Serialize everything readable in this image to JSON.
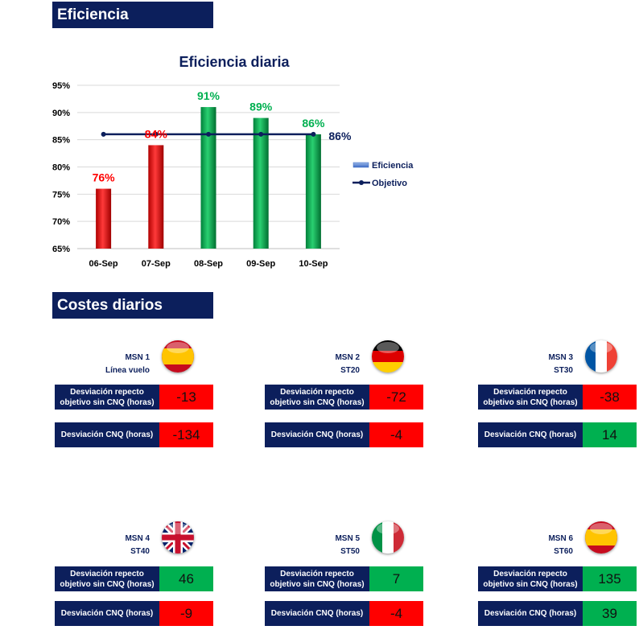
{
  "sections": {
    "efficiency_title": "Eficiencia",
    "costs_title": "Costes diarios"
  },
  "chart_data": {
    "type": "bar",
    "title": "Eficiencia diaria",
    "categories": [
      "06-Sep",
      "07-Sep",
      "08-Sep",
      "09-Sep",
      "10-Sep"
    ],
    "series": [
      {
        "name": "Eficiencia",
        "type": "bar",
        "values": [
          76,
          84,
          91,
          89,
          86
        ],
        "bar_colors": [
          "#ff0000",
          "#ff0000",
          "#00b050",
          "#00b050",
          "#00b050"
        ]
      },
      {
        "name": "Objetivo",
        "type": "line",
        "values": [
          86,
          86,
          86,
          86,
          86
        ],
        "color": "#0c1f5c"
      }
    ],
    "data_labels": [
      "76%",
      "84%",
      "91%",
      "89%",
      "86%"
    ],
    "objective_label": "86%",
    "y_ticks": [
      "95%",
      "90%",
      "85%",
      "80%",
      "75%",
      "70%",
      "65%"
    ],
    "ylim": [
      65,
      95
    ],
    "grid": true,
    "legend_position": "right"
  },
  "cards": [
    {
      "msn": "MSN 1",
      "station": "Línea vuelo",
      "flag": "spain",
      "dev_label": "Desviación repecto objetivo sin CNQ (horas)",
      "dev_value": "-13",
      "dev_status": "bad",
      "cnq_label": "Desviación CNQ (horas)",
      "cnq_value": "-134",
      "cnq_status": "bad"
    },
    {
      "msn": "MSN 2",
      "station": "ST20",
      "flag": "germany",
      "dev_label": "Desviación repecto objetivo sin CNQ (horas)",
      "dev_value": "-72",
      "dev_status": "bad",
      "cnq_label": "Desviación CNQ (horas)",
      "cnq_value": "-4",
      "cnq_status": "bad"
    },
    {
      "msn": "MSN 3",
      "station": "ST30",
      "flag": "france",
      "dev_label": "Desviación repecto objetivo sin CNQ (horas)",
      "dev_value": "-38",
      "dev_status": "bad",
      "cnq_label": "Desviación CNQ (horas)",
      "cnq_value": "14",
      "cnq_status": "good"
    },
    {
      "msn": "MSN 4",
      "station": "ST40",
      "flag": "uk",
      "dev_label": "Desviación repecto objetivo sin CNQ (horas)",
      "dev_value": "46",
      "dev_status": "good",
      "cnq_label": "Desviación CNQ (horas)",
      "cnq_value": "-9",
      "cnq_status": "bad"
    },
    {
      "msn": "MSN 5",
      "station": "ST50",
      "flag": "italy",
      "dev_label": "Desviación repecto objetivo sin CNQ (horas)",
      "dev_value": "7",
      "dev_status": "good",
      "cnq_label": "Desviación CNQ (horas)",
      "cnq_value": "-4",
      "cnq_status": "bad"
    },
    {
      "msn": "MSN 6",
      "station": "ST60",
      "flag": "spain",
      "dev_label": "Desviación repecto objetivo sin CNQ (horas)",
      "dev_value": "135",
      "dev_status": "good",
      "cnq_label": "Desviación CNQ (horas)",
      "cnq_value": "39",
      "cnq_status": "good"
    }
  ],
  "colors": {
    "navy": "#0c1f5c",
    "bad": "#ff0000",
    "good": "#00b050",
    "good_label": "#00b050",
    "bad_label": "#ff0000"
  }
}
